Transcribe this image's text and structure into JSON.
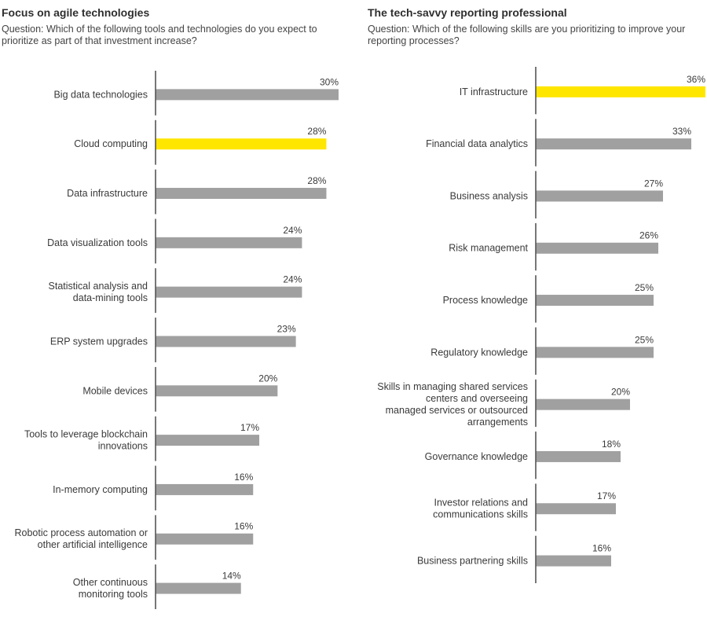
{
  "colors": {
    "bar": "#a0a0a0",
    "highlight": "#ffe600",
    "axis": "#555555"
  },
  "chart_data": [
    {
      "type": "bar",
      "orientation": "horizontal",
      "title": "Focus on agile technologies",
      "subtitle": "Question: Which of the following tools and technologies do you expect to prioritize as part of that investment increase?",
      "unit": "%",
      "categories": [
        [
          "Big data technologies"
        ],
        [
          "Cloud computing"
        ],
        [
          "Data infrastructure"
        ],
        [
          "Data visualization tools"
        ],
        [
          "Statistical analysis and",
          "data-mining tools"
        ],
        [
          "ERP system upgrades"
        ],
        [
          "Mobile devices"
        ],
        [
          "Tools to leverage blockchain",
          "innovations"
        ],
        [
          "In-memory computing"
        ],
        [
          "Robotic process automation or",
          "other artificial intelligence"
        ],
        [
          "Other continuous",
          "monitoring tools"
        ]
      ],
      "values": [
        30,
        28,
        28,
        24,
        24,
        23,
        20,
        17,
        16,
        16,
        14
      ],
      "highlight_index": 1,
      "xlim": [
        0,
        30
      ]
    },
    {
      "type": "bar",
      "orientation": "horizontal",
      "title": "The tech-savvy reporting professional",
      "subtitle": "Question: Which of the following skills are you prioritizing to improve your reporting processes?",
      "unit": "%",
      "categories": [
        [
          "IT infrastructure"
        ],
        [
          "Financial data analytics"
        ],
        [
          "Business analysis"
        ],
        [
          "Risk management"
        ],
        [
          "Process knowledge"
        ],
        [
          "Regulatory knowledge"
        ],
        [
          "Skills in managing shared services",
          "centers and overseeing",
          "managed services or outsourced",
          "arrangements"
        ],
        [
          "Governance knowledge"
        ],
        [
          "Investor relations and",
          "communications skills"
        ],
        [
          "Business partnering skills"
        ]
      ],
      "values": [
        36,
        33,
        27,
        26,
        25,
        25,
        20,
        18,
        17,
        16
      ],
      "highlight_index": 0,
      "xlim": [
        0,
        36
      ]
    }
  ]
}
